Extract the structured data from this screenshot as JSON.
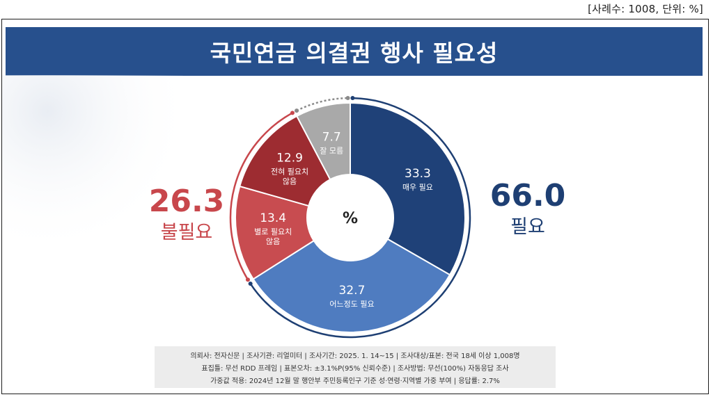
{
  "header_note": "[사례수: 1008, 단위: %]",
  "title": "국민연금 의결권 행사 필요성",
  "center_label": "%",
  "groups": {
    "negative": {
      "value": "26.3",
      "label": "불필요",
      "color": "#c8474c"
    },
    "positive": {
      "value": "66.0",
      "label": "필요",
      "color": "#1e3f73"
    }
  },
  "chart_data": {
    "type": "pie",
    "donut": true,
    "unit": "%",
    "slices": [
      {
        "label": "매우 필요",
        "value": 33.3,
        "color": "#1f4178"
      },
      {
        "label": "어느정도 필요",
        "value": 32.7,
        "color": "#4f7cc0"
      },
      {
        "label": "별로 필요치 않음",
        "label_lines": [
          "별로 필요치",
          "않음"
        ],
        "value": 13.4,
        "color": "#c84c50"
      },
      {
        "label": "전혀 필요치 않음",
        "label_lines": [
          "전혀 필요치",
          "않음"
        ],
        "value": 12.9,
        "color": "#9d2c31"
      },
      {
        "label": "잘 모름",
        "value": 7.7,
        "color": "#a9a9a9"
      }
    ]
  },
  "footer": {
    "lines": [
      "의뢰사: 전자신문 | 조사기관: 리얼미터 | 조사기간: 2025. 1. 14~15 | 조사대상/표본: 전국 18세 이상 1,008명",
      "표집틀: 무선 RDD 프레임 | 표본오차: ±3.1%P(95% 신뢰수준) | 조사방법: 무선(100%) 자동응답 조사",
      "가중값 적용: 2024년 12월 말 행안부 주민등록인구 기준 성·연령·지역별 가중 부여 | 응답률: 2.7%"
    ]
  }
}
